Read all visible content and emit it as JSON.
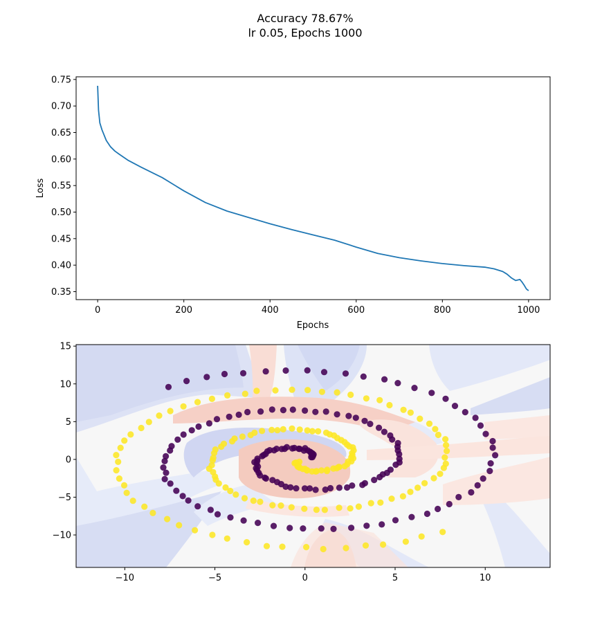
{
  "figure": {
    "title_line1": "Accuracy 78.67%",
    "title_line2": "lr 0.05, Epochs 1000"
  },
  "chart_data": [
    {
      "type": "line",
      "xlabel": "Epochs",
      "ylabel": "Loss",
      "xlim": [
        -50,
        1050
      ],
      "ylim": [
        0.335,
        0.755
      ],
      "xticks": [
        0,
        200,
        400,
        600,
        800,
        1000
      ],
      "yticks": [
        0.35,
        0.4,
        0.45,
        0.5,
        0.55,
        0.6,
        0.65,
        0.7,
        0.75
      ],
      "line_color": "#1f77b4",
      "series": [
        {
          "x": [
            0,
            2,
            5,
            10,
            20,
            30,
            40,
            50,
            70,
            100,
            150,
            200,
            250,
            300,
            350,
            400,
            450,
            500,
            550,
            600,
            650,
            700,
            750,
            800,
            850,
            900,
            920,
            940,
            950,
            960,
            970,
            980,
            985,
            990,
            995,
            1000
          ],
          "y": [
            0.738,
            0.692,
            0.668,
            0.655,
            0.635,
            0.623,
            0.615,
            0.609,
            0.598,
            0.585,
            0.565,
            0.54,
            0.518,
            0.502,
            0.49,
            0.478,
            0.467,
            0.457,
            0.447,
            0.434,
            0.422,
            0.414,
            0.408,
            0.403,
            0.399,
            0.396,
            0.393,
            0.388,
            0.383,
            0.376,
            0.371,
            0.373,
            0.368,
            0.362,
            0.355,
            0.352
          ]
        }
      ]
    },
    {
      "type": "scatter",
      "xlim": [
        -12.7,
        13.6
      ],
      "ylim": [
        -14.3,
        15.2
      ],
      "xticks": [
        -10,
        -5,
        0,
        5,
        10
      ],
      "yticks": [
        -10,
        -5,
        0,
        5,
        10,
        15
      ],
      "background": "decision-boundary contour (blue / white / red)",
      "series": [
        {
          "color": "#440154"
        },
        {
          "color": "#fde725"
        }
      ]
    }
  ]
}
